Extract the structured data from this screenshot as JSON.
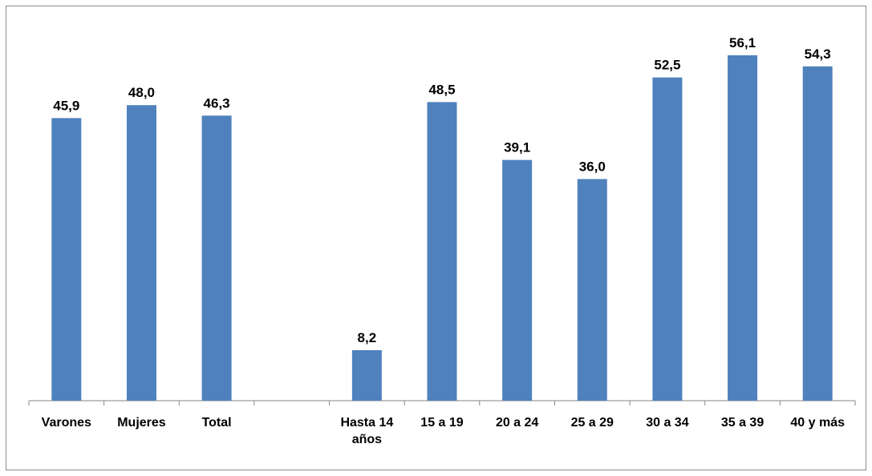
{
  "chart_data": {
    "type": "bar",
    "categories": [
      "Varones",
      "Mujeres",
      "Total",
      "",
      "Hasta 14 años",
      "15 a 19",
      "20 a 24",
      "25 a 29",
      "30 a 34",
      "35 a 39",
      "40 y más"
    ],
    "category_lines": [
      [
        "Varones"
      ],
      [
        "Mujeres"
      ],
      [
        "Total"
      ],
      [
        ""
      ],
      [
        "Hasta 14",
        "años"
      ],
      [
        "15 a 19"
      ],
      [
        "20 a 24"
      ],
      [
        "25 a 29"
      ],
      [
        "30 a 34"
      ],
      [
        "35 a 39"
      ],
      [
        "40 y más"
      ]
    ],
    "values": [
      45.9,
      48.0,
      46.3,
      null,
      8.2,
      48.5,
      39.1,
      36.0,
      52.5,
      56.1,
      54.3
    ],
    "value_labels": [
      "45,9",
      "48,0",
      "46,3",
      "",
      "8,2",
      "48,5",
      "39,1",
      "36,0",
      "52,5",
      "56,1",
      "54,3"
    ],
    "ylim": [
      0,
      60
    ],
    "grid": false,
    "legend": "none",
    "bar_color": "#4f81bd",
    "axis_color": "#868686"
  }
}
